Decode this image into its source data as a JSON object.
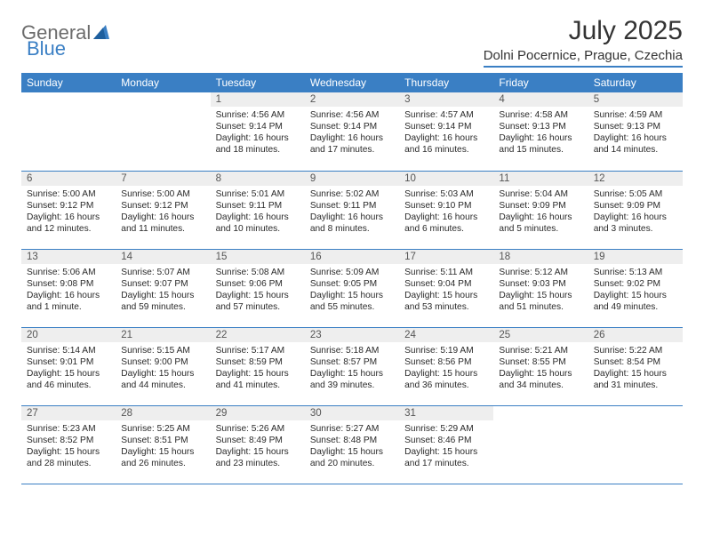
{
  "logo": {
    "part1": "General",
    "part2": "Blue"
  },
  "title": "July 2025",
  "location": "Dolni Pocernice, Prague, Czechia",
  "header_bg": "#3a7fc4",
  "dow": [
    "Sunday",
    "Monday",
    "Tuesday",
    "Wednesday",
    "Thursday",
    "Friday",
    "Saturday"
  ],
  "weeks": [
    [
      null,
      null,
      {
        "n": "1",
        "sr": "4:56 AM",
        "ss": "9:14 PM",
        "dl": "16 hours and 18 minutes."
      },
      {
        "n": "2",
        "sr": "4:56 AM",
        "ss": "9:14 PM",
        "dl": "16 hours and 17 minutes."
      },
      {
        "n": "3",
        "sr": "4:57 AM",
        "ss": "9:14 PM",
        "dl": "16 hours and 16 minutes."
      },
      {
        "n": "4",
        "sr": "4:58 AM",
        "ss": "9:13 PM",
        "dl": "16 hours and 15 minutes."
      },
      {
        "n": "5",
        "sr": "4:59 AM",
        "ss": "9:13 PM",
        "dl": "16 hours and 14 minutes."
      }
    ],
    [
      {
        "n": "6",
        "sr": "5:00 AM",
        "ss": "9:12 PM",
        "dl": "16 hours and 12 minutes."
      },
      {
        "n": "7",
        "sr": "5:00 AM",
        "ss": "9:12 PM",
        "dl": "16 hours and 11 minutes."
      },
      {
        "n": "8",
        "sr": "5:01 AM",
        "ss": "9:11 PM",
        "dl": "16 hours and 10 minutes."
      },
      {
        "n": "9",
        "sr": "5:02 AM",
        "ss": "9:11 PM",
        "dl": "16 hours and 8 minutes."
      },
      {
        "n": "10",
        "sr": "5:03 AM",
        "ss": "9:10 PM",
        "dl": "16 hours and 6 minutes."
      },
      {
        "n": "11",
        "sr": "5:04 AM",
        "ss": "9:09 PM",
        "dl": "16 hours and 5 minutes."
      },
      {
        "n": "12",
        "sr": "5:05 AM",
        "ss": "9:09 PM",
        "dl": "16 hours and 3 minutes."
      }
    ],
    [
      {
        "n": "13",
        "sr": "5:06 AM",
        "ss": "9:08 PM",
        "dl": "16 hours and 1 minute."
      },
      {
        "n": "14",
        "sr": "5:07 AM",
        "ss": "9:07 PM",
        "dl": "15 hours and 59 minutes."
      },
      {
        "n": "15",
        "sr": "5:08 AM",
        "ss": "9:06 PM",
        "dl": "15 hours and 57 minutes."
      },
      {
        "n": "16",
        "sr": "5:09 AM",
        "ss": "9:05 PM",
        "dl": "15 hours and 55 minutes."
      },
      {
        "n": "17",
        "sr": "5:11 AM",
        "ss": "9:04 PM",
        "dl": "15 hours and 53 minutes."
      },
      {
        "n": "18",
        "sr": "5:12 AM",
        "ss": "9:03 PM",
        "dl": "15 hours and 51 minutes."
      },
      {
        "n": "19",
        "sr": "5:13 AM",
        "ss": "9:02 PM",
        "dl": "15 hours and 49 minutes."
      }
    ],
    [
      {
        "n": "20",
        "sr": "5:14 AM",
        "ss": "9:01 PM",
        "dl": "15 hours and 46 minutes."
      },
      {
        "n": "21",
        "sr": "5:15 AM",
        "ss": "9:00 PM",
        "dl": "15 hours and 44 minutes."
      },
      {
        "n": "22",
        "sr": "5:17 AM",
        "ss": "8:59 PM",
        "dl": "15 hours and 41 minutes."
      },
      {
        "n": "23",
        "sr": "5:18 AM",
        "ss": "8:57 PM",
        "dl": "15 hours and 39 minutes."
      },
      {
        "n": "24",
        "sr": "5:19 AM",
        "ss": "8:56 PM",
        "dl": "15 hours and 36 minutes."
      },
      {
        "n": "25",
        "sr": "5:21 AM",
        "ss": "8:55 PM",
        "dl": "15 hours and 34 minutes."
      },
      {
        "n": "26",
        "sr": "5:22 AM",
        "ss": "8:54 PM",
        "dl": "15 hours and 31 minutes."
      }
    ],
    [
      {
        "n": "27",
        "sr": "5:23 AM",
        "ss": "8:52 PM",
        "dl": "15 hours and 28 minutes."
      },
      {
        "n": "28",
        "sr": "5:25 AM",
        "ss": "8:51 PM",
        "dl": "15 hours and 26 minutes."
      },
      {
        "n": "29",
        "sr": "5:26 AM",
        "ss": "8:49 PM",
        "dl": "15 hours and 23 minutes."
      },
      {
        "n": "30",
        "sr": "5:27 AM",
        "ss": "8:48 PM",
        "dl": "15 hours and 20 minutes."
      },
      {
        "n": "31",
        "sr": "5:29 AM",
        "ss": "8:46 PM",
        "dl": "15 hours and 17 minutes."
      },
      null,
      null
    ]
  ],
  "labels": {
    "sunrise": "Sunrise: ",
    "sunset": "Sunset: ",
    "daylight": "Daylight: "
  }
}
